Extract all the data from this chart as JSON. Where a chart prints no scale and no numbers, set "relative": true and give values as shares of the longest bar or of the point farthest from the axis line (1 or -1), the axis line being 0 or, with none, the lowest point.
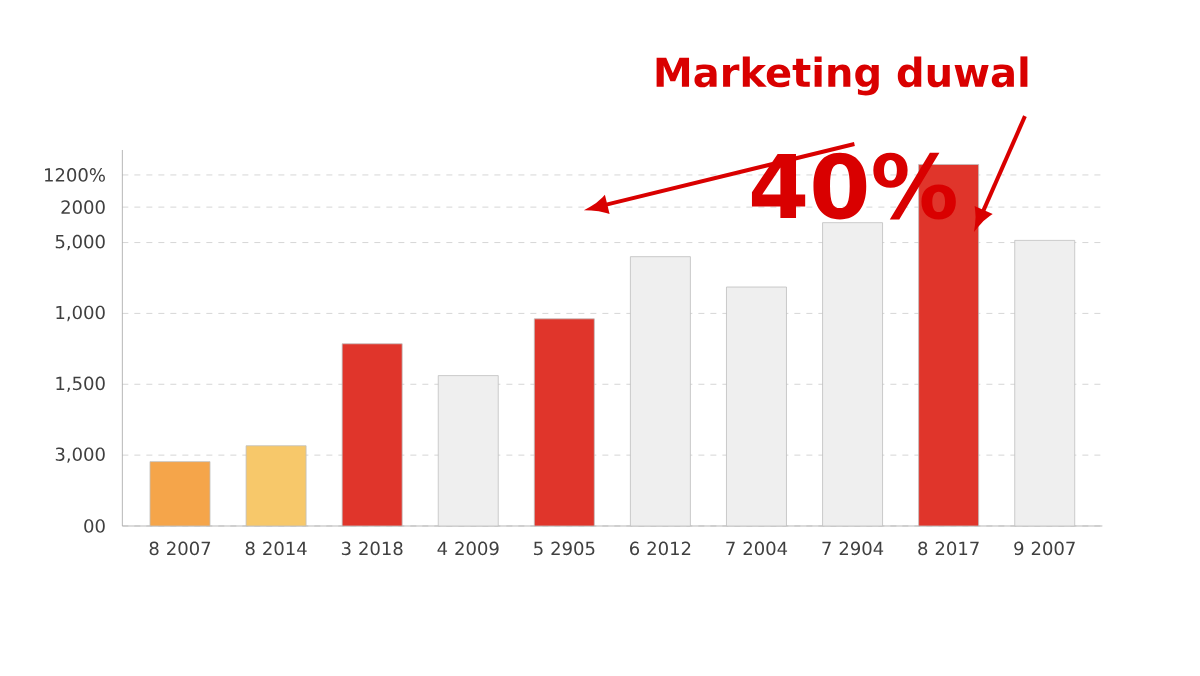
{
  "chart_data": {
    "type": "bar",
    "relative": true,
    "categories": [
      "8 2007",
      "8 2014",
      "3 2018",
      "4 2009",
      "5 2905",
      "6 2012",
      "7 2004",
      "7 2904",
      "8 2017",
      "9 2007"
    ],
    "values": [
      0.178,
      0.222,
      0.504,
      0.416,
      0.573,
      0.745,
      0.661,
      0.839,
      1,
      0.79
    ],
    "colors": [
      "#f5a54a",
      "#f7c86a",
      "#e0352b",
      "#efefef",
      "#e0352b",
      "#efefef",
      "#efefef",
      "#efefef",
      "#e0352b",
      "#efefef"
    ],
    "grid": "y",
    "annotations": [
      "Marketing duwal",
      "40%",
      "00",
      "3,000",
      "1,500",
      "1,000",
      "5,000",
      "2000",
      "1200%"
    ]
  }
}
